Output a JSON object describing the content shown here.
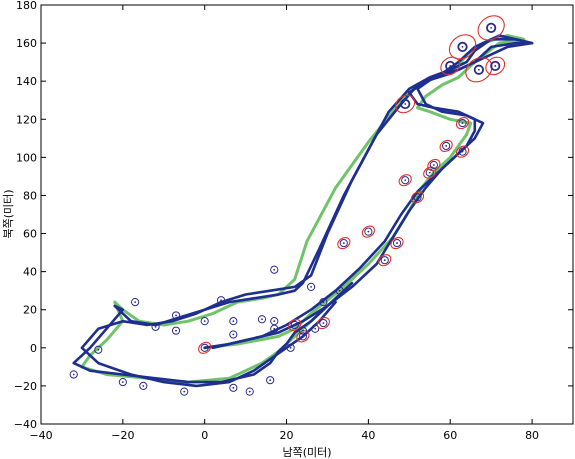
{
  "chart_data": {
    "type": "line",
    "title": "",
    "xlabel": "남쪽(미터)",
    "ylabel": "북쪽(미터)",
    "xlim": [
      -40,
      90
    ],
    "ylim": [
      -40,
      180
    ],
    "xticks": [
      -40,
      -20,
      0,
      20,
      40,
      60,
      80
    ],
    "yticks": [
      -40,
      -20,
      0,
      20,
      40,
      60,
      80,
      100,
      120,
      140,
      160,
      180
    ],
    "xtick_labels": [
      "−40",
      "−20",
      "0",
      "20",
      "40",
      "60",
      "80"
    ],
    "ytick_labels": [
      "−40",
      "−20",
      "0",
      "20",
      "40",
      "60",
      "80",
      "100",
      "120",
      "140",
      "160",
      "180"
    ],
    "grid": false,
    "colors": {
      "estimated_path": "#1f2f8f",
      "reference_path": "#6fc36a",
      "landmark": "#2b2b8f",
      "uncertainty_ellipse": "#e0312e"
    },
    "series": [
      {
        "role": "reference-path",
        "x": [
          0,
          8,
          18,
          22,
          26,
          34,
          40,
          46,
          50,
          53,
          56,
          60,
          62,
          64,
          65,
          60,
          55,
          52,
          54,
          58,
          62,
          66,
          72,
          78,
          74,
          68,
          64,
          62,
          59,
          54,
          50,
          46,
          40,
          32,
          25,
          22,
          18,
          14,
          8,
          2,
          -4,
          -10,
          -16,
          -20,
          -22,
          -20,
          -24,
          -28,
          -30,
          -24,
          -14,
          -4,
          6,
          14,
          18,
          21,
          24,
          28,
          34
        ],
        "y": [
          0,
          2,
          6,
          10,
          18,
          32,
          44,
          58,
          72,
          84,
          92,
          100,
          106,
          112,
          118,
          120,
          124,
          126,
          132,
          138,
          142,
          150,
          160,
          162,
          164,
          160,
          154,
          148,
          144,
          140,
          134,
          124,
          108,
          84,
          56,
          36,
          28,
          26,
          24,
          18,
          14,
          12,
          14,
          20,
          24,
          14,
          4,
          -4,
          -10,
          -14,
          -16,
          -18,
          -16,
          -8,
          -2,
          4,
          10,
          18,
          30
        ]
      },
      {
        "role": "estimated-path-1",
        "x": [
          0,
          6,
          14,
          20,
          26,
          32,
          38,
          44,
          48,
          52,
          56,
          60,
          64,
          66,
          66,
          62,
          56,
          52,
          50,
          54,
          60,
          66,
          70,
          76,
          80,
          76,
          70,
          66,
          64,
          60,
          55,
          50,
          45,
          40,
          34,
          28,
          24,
          22,
          18,
          12,
          6,
          0,
          -6,
          -12,
          -18,
          -22,
          -20,
          -24,
          -28,
          -32,
          -28,
          -20,
          -12,
          -4,
          4,
          12,
          16,
          18,
          20,
          22,
          26,
          30,
          36
        ],
        "y": [
          0,
          2,
          6,
          12,
          20,
          30,
          42,
          56,
          70,
          82,
          90,
          98,
          106,
          114,
          120,
          124,
          126,
          128,
          134,
          140,
          144,
          150,
          158,
          160,
          160,
          162,
          162,
          156,
          150,
          146,
          142,
          136,
          124,
          104,
          80,
          52,
          34,
          30,
          28,
          26,
          24,
          20,
          16,
          12,
          14,
          22,
          20,
          10,
          0,
          -8,
          -12,
          -14,
          -16,
          -18,
          -18,
          -14,
          -8,
          -2,
          2,
          8,
          14,
          22,
          34
        ]
      },
      {
        "role": "estimated-path-2",
        "x": [
          2,
          10,
          18,
          24,
          30,
          36,
          42,
          46,
          50,
          54,
          58,
          62,
          66,
          68,
          64,
          58,
          54,
          52,
          56,
          62,
          68,
          74,
          80,
          72,
          66,
          62,
          58,
          52,
          48,
          42,
          36,
          30,
          26,
          22,
          16,
          10,
          4,
          -2,
          -8,
          -14,
          -20,
          -26,
          -30,
          -26,
          -18,
          -10,
          -2,
          6,
          12,
          16,
          20,
          24,
          28,
          32
        ],
        "y": [
          0,
          4,
          8,
          14,
          22,
          32,
          44,
          58,
          72,
          84,
          94,
          102,
          110,
          118,
          122,
          124,
          128,
          136,
          142,
          146,
          152,
          158,
          160,
          164,
          158,
          150,
          144,
          138,
          128,
          112,
          88,
          60,
          38,
          32,
          30,
          28,
          24,
          18,
          14,
          12,
          14,
          10,
          0,
          -8,
          -14,
          -18,
          -20,
          -18,
          -12,
          -6,
          0,
          6,
          14,
          24
        ]
      }
    ],
    "landmarks": [
      {
        "x": -32,
        "y": -14,
        "e": 0
      },
      {
        "x": -26,
        "y": -1,
        "e": 0
      },
      {
        "x": -20,
        "y": -18,
        "e": 0
      },
      {
        "x": -17,
        "y": 24,
        "e": 0
      },
      {
        "x": -15,
        "y": -20,
        "e": 0
      },
      {
        "x": -12,
        "y": 11,
        "e": 0
      },
      {
        "x": -7,
        "y": 17,
        "e": 0
      },
      {
        "x": -7,
        "y": 9,
        "e": 0
      },
      {
        "x": -5,
        "y": -23,
        "e": 0
      },
      {
        "x": 0,
        "y": 14,
        "e": 0
      },
      {
        "x": 0,
        "y": 0,
        "e": 1
      },
      {
        "x": 4,
        "y": 25,
        "e": 0
      },
      {
        "x": 7,
        "y": 14,
        "e": 0
      },
      {
        "x": 7,
        "y": 7,
        "e": 0
      },
      {
        "x": 7,
        "y": -21,
        "e": 0
      },
      {
        "x": 11,
        "y": -23,
        "e": 0
      },
      {
        "x": 14,
        "y": 15,
        "e": 0
      },
      {
        "x": 17,
        "y": 41,
        "e": 0
      },
      {
        "x": 17,
        "y": 10,
        "e": 0
      },
      {
        "x": 17,
        "y": 14,
        "e": 0
      },
      {
        "x": 16,
        "y": -17,
        "e": 0
      },
      {
        "x": 21,
        "y": 0,
        "e": 0
      },
      {
        "x": 22,
        "y": 12,
        "e": 1
      },
      {
        "x": 24,
        "y": 6,
        "e": 1
      },
      {
        "x": 24,
        "y": 9,
        "e": 0
      },
      {
        "x": 26,
        "y": 32,
        "e": 0
      },
      {
        "x": 27,
        "y": 10,
        "e": 0
      },
      {
        "x": 29,
        "y": 24,
        "e": 0
      },
      {
        "x": 29,
        "y": 13,
        "e": 1
      },
      {
        "x": 33,
        "y": 30,
        "e": 0
      },
      {
        "x": 34,
        "y": 55,
        "e": 1
      },
      {
        "x": 40,
        "y": 61,
        "e": 1
      },
      {
        "x": 44,
        "y": 46,
        "e": 1
      },
      {
        "x": 47,
        "y": 55,
        "e": 1
      },
      {
        "x": 49,
        "y": 88,
        "e": 1
      },
      {
        "x": 52,
        "y": 79,
        "e": 1
      },
      {
        "x": 55,
        "y": 92,
        "e": 1
      },
      {
        "x": 56,
        "y": 96,
        "e": 1
      },
      {
        "x": 59,
        "y": 106,
        "e": 1
      },
      {
        "x": 63,
        "y": 103,
        "e": 1
      },
      {
        "x": 63,
        "y": 118,
        "e": 1
      },
      {
        "x": 49,
        "y": 128,
        "e": 2
      },
      {
        "x": 60,
        "y": 148,
        "e": 2
      },
      {
        "x": 63,
        "y": 158,
        "e": 3
      },
      {
        "x": 67,
        "y": 146,
        "e": 3
      },
      {
        "x": 71,
        "y": 148,
        "e": 2
      },
      {
        "x": 70,
        "y": 168,
        "e": 3
      }
    ]
  }
}
